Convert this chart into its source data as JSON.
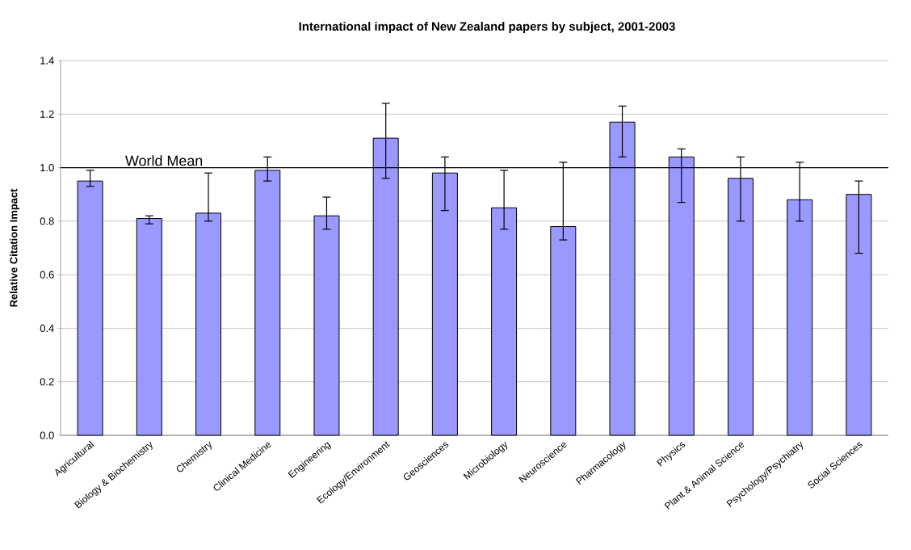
{
  "chart_data": {
    "type": "bar",
    "title": "International impact of New Zealand papers by subject, 2001-2003",
    "ylabel": "Relative Citation Impact",
    "categories": [
      "Agricultural",
      "Biology & Biochemistry",
      "Chemistry",
      "Clinical Medicine",
      "Engineering",
      "Ecology/Environment",
      "Geosciences",
      "Microbiology",
      "Neuroscience",
      "Pharmacology",
      "Physics",
      "Plant & Animal Science",
      "Psychology/Psychiatry",
      "Social Sciences"
    ],
    "values": [
      0.95,
      0.81,
      0.83,
      0.99,
      0.82,
      1.11,
      0.98,
      0.85,
      0.78,
      1.17,
      1.04,
      0.96,
      0.88,
      0.9
    ],
    "errors": [
      [
        0.93,
        0.99
      ],
      [
        0.79,
        0.82
      ],
      [
        0.8,
        0.98
      ],
      [
        0.95,
        1.04
      ],
      [
        0.77,
        0.89
      ],
      [
        0.96,
        1.24
      ],
      [
        0.84,
        1.04
      ],
      [
        0.77,
        0.99
      ],
      [
        0.73,
        1.02
      ],
      [
        1.04,
        1.23
      ],
      [
        0.87,
        1.07
      ],
      [
        0.8,
        1.04
      ],
      [
        0.8,
        1.02
      ],
      [
        0.68,
        0.95
      ]
    ],
    "color": "#9999ff",
    "ylim": [
      0,
      1.4
    ],
    "yticks": [
      {
        "value": 0,
        "label": "0.0"
      },
      {
        "value": 0.2,
        "label": "0.2"
      },
      {
        "value": 0.4,
        "label": "0.4"
      },
      {
        "value": 0.6,
        "label": "0.6"
      },
      {
        "value": 0.8,
        "label": "0.8"
      },
      {
        "value": 1.0,
        "label": "1.0"
      },
      {
        "value": 1.2,
        "label": "1.2"
      },
      {
        "value": 1.4,
        "label": "1.4"
      }
    ],
    "grid": "y",
    "ref_lines": [
      {
        "axis": "y",
        "value": 1.0,
        "label": "World Mean",
        "color": "#000000"
      }
    ]
  }
}
